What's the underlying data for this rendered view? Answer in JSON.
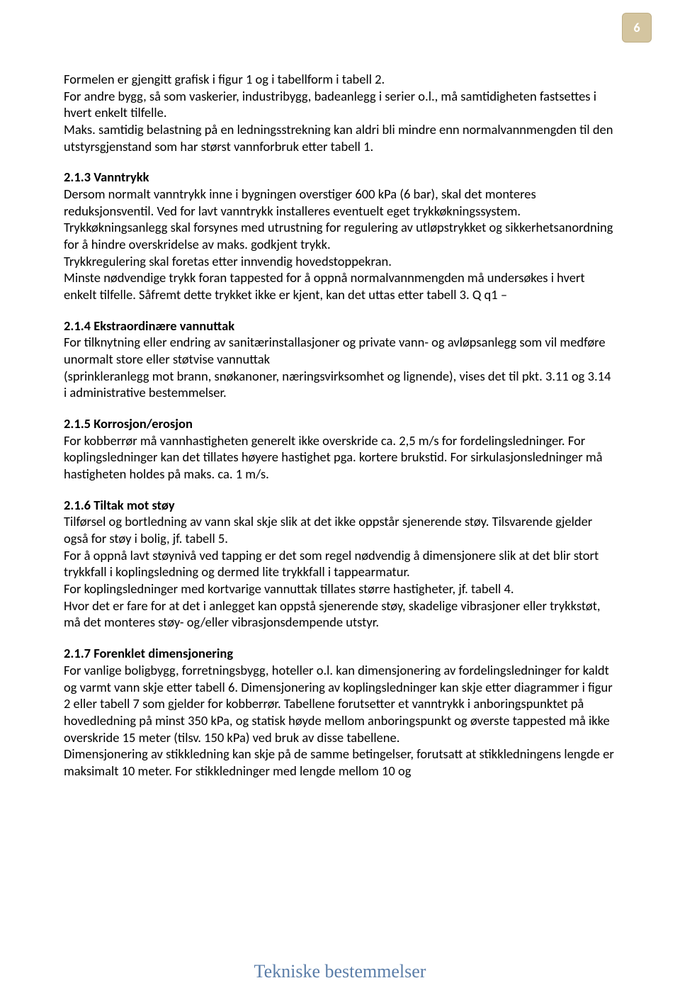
{
  "page": {
    "number": "6",
    "footer": "Tekniske bestemmelser"
  },
  "intro": {
    "p1": "Formelen er gjengitt grafisk i figur 1 og i tabellform i tabell 2.",
    "p2": "For andre bygg, så som vaskerier, industribygg, badeanlegg i serier o.l., må samtidigheten fastsettes i hvert enkelt tilfelle.",
    "p3": "Maks. samtidig belastning på en ledningsstrekning kan aldri bli mindre enn normalvannmengden til den utstyrsgjenstand som har størst vannforbruk etter tabell 1."
  },
  "s213": {
    "heading": "2.1.3 Vanntrykk",
    "p1": "Dersom normalt vanntrykk inne i bygningen overstiger 600 kPa (6 bar), skal det monteres reduksjonsventil. Ved for lavt vanntrykk installeres eventuelt eget trykkøkningssystem. Trykkøkningsanlegg skal forsynes med utrustning for regulering av utløpstrykket og sikkerhetsanordning for å hindre overskridelse av maks. godkjent trykk.",
    "p2": "Trykkregulering skal foretas etter innvendig hovedstoppekran.",
    "p3": "Minste nødvendige trykk foran tappested for å oppnå normalvannmengden må undersøkes i hvert enkelt tilfelle. Såfremt dette trykket ikke er kjent, kan det uttas etter tabell 3. Q q1 –"
  },
  "s214": {
    "heading": "2.1.4 Ekstraordinære vannuttak",
    "p1": "For tilknytning eller endring av sanitærinstallasjoner og private vann- og avløpsanlegg som vil medføre unormalt store eller støtvise vannuttak",
    "p2": "(sprinkleranlegg mot brann, snøkanoner, næringsvirksomhet og lignende), vises det til pkt. 3.11 og 3.14 i administrative bestemmelser."
  },
  "s215": {
    "heading": "2.1.5 Korrosjon/erosjon",
    "p1": "For kobberrør må vannhastigheten generelt ikke overskride ca. 2,5 m/s for fordelingsledninger. For koplingsledninger kan det tillates høyere hastighet pga. kortere brukstid. For sirkulasjonsledninger må hastigheten holdes på maks. ca. 1 m/s."
  },
  "s216": {
    "heading": "2.1.6 Tiltak mot støy",
    "p1": "Tilførsel og bortledning av vann skal skje slik at det ikke oppstår sjenerende støy. Tilsvarende gjelder også for støy i bolig, jf. tabell 5.",
    "p2": "For å oppnå lavt støynivå ved tapping er det som regel nødvendig å dimensjonere slik at det blir stort trykkfall i koplingsledning og dermed lite trykkfall i tappearmatur.",
    "p3": "For koplingsledninger med kortvarige vannuttak tillates større hastigheter, jf. tabell 4.",
    "p4": "Hvor det er fare for at det i anlegget kan oppstå sjenerende støy, skadelige vibrasjoner eller trykkstøt, må det monteres støy- og/eller vibrasjonsdempende utstyr."
  },
  "s217": {
    "heading": "2.1.7 Forenklet dimensjonering",
    "p1": "For vanlige boligbygg, forretningsbygg, hoteller o.l. kan dimensjonering av fordelingsledninger for kaldt og varmt vann skje etter tabell 6. Dimensjonering av koplingsledninger kan skje etter diagrammer i figur 2 eller tabell 7 som gjelder for kobberrør. Tabellene forutsetter et vanntrykk i anboringspunktet på hovedledning på minst 350 kPa, og statisk høyde mellom anboringspunkt og øverste tappested må ikke overskride 15 meter (tilsv. 150 kPa) ved bruk av disse tabellene.",
    "p2": "Dimensjonering av stikkledning kan skje på de samme betingelser, forutsatt at stikkledningens lengde er maksimalt 10 meter. For stikkledninger med lengde mellom 10 og"
  }
}
